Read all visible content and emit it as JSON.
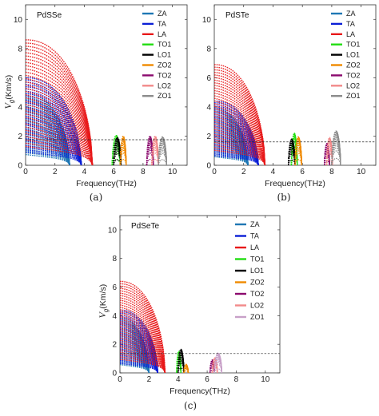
{
  "chart_data": [
    {
      "type": "scatter",
      "panel_title": "PdSSe",
      "caption": "(a)",
      "xlabel": "Frequency(THz)",
      "ylabel_symbol": "V",
      "ylabel_sub": "g",
      "ylabel_units": "(Km/s)",
      "xlim": [
        0,
        11
      ],
      "ylim": [
        0,
        11
      ],
      "xticks": [
        0,
        2,
        4,
        6,
        8,
        10
      ],
      "yticks": [
        0,
        2,
        4,
        6,
        8,
        10
      ],
      "reference_line_y": 1.75,
      "legend_position": "top-right",
      "series": [
        {
          "name": "ZA",
          "color": "#1f77b4",
          "branches": [
            {
              "x0": 0.0,
              "x1": 3.0,
              "peak": 4.9
            }
          ]
        },
        {
          "name": "TA",
          "color": "#0a1fd6",
          "branches": [
            {
              "x0": 0.0,
              "x1": 3.8,
              "peak": 6.0
            }
          ]
        },
        {
          "name": "LA",
          "color": "#e8191a",
          "branches": [
            {
              "x0": 0.0,
              "x1": 4.55,
              "peak": 8.6
            }
          ]
        },
        {
          "name": "TO1",
          "color": "#22dd11",
          "branches": [
            {
              "x0": 5.9,
              "x1": 6.45,
              "peak": 2.05
            }
          ]
        },
        {
          "name": "LO1",
          "color": "#000000",
          "branches": [
            {
              "x0": 6.0,
              "x1": 6.5,
              "peak": 1.9
            }
          ]
        },
        {
          "name": "ZO2",
          "color": "#f08a00",
          "branches": [
            {
              "x0": 6.45,
              "x1": 6.85,
              "peak": 2.0
            }
          ]
        },
        {
          "name": "TO2",
          "color": "#8b0a6e",
          "branches": [
            {
              "x0": 8.25,
              "x1": 8.7,
              "peak": 2.0
            }
          ]
        },
        {
          "name": "LO2",
          "color": "#f28a8a",
          "branches": [
            {
              "x0": 8.6,
              "x1": 9.05,
              "peak": 2.0
            }
          ]
        },
        {
          "name": "ZO1",
          "color": "#8c8c8c",
          "branches": [
            {
              "x0": 9.05,
              "x1": 9.6,
              "peak": 1.95
            }
          ]
        }
      ]
    },
    {
      "type": "scatter",
      "panel_title": "PdSTe",
      "caption": "(b)",
      "xlabel": "Frequency(THz)",
      "ylabel_symbol": "",
      "ylabel_sub": "",
      "ylabel_units": "",
      "xlim": [
        0,
        11
      ],
      "ylim": [
        0,
        11
      ],
      "xticks": [
        0,
        2,
        4,
        6,
        8,
        10
      ],
      "yticks": [
        0,
        2,
        4,
        6,
        8,
        10
      ],
      "reference_line_y": 1.6,
      "legend_position": "top-right",
      "series": [
        {
          "name": "ZA",
          "color": "#1f77b4",
          "branches": [
            {
              "x0": 0.0,
              "x1": 2.3,
              "peak": 3.9
            }
          ]
        },
        {
          "name": "TA",
          "color": "#0a1fd6",
          "branches": [
            {
              "x0": 0.0,
              "x1": 3.0,
              "peak": 4.4
            }
          ]
        },
        {
          "name": "LA",
          "color": "#e8191a",
          "branches": [
            {
              "x0": 0.0,
              "x1": 3.45,
              "peak": 6.9
            }
          ]
        },
        {
          "name": "TO1",
          "color": "#22dd11",
          "branches": [
            {
              "x0": 5.25,
              "x1": 5.65,
              "peak": 2.2
            }
          ]
        },
        {
          "name": "LO1",
          "color": "#000000",
          "branches": [
            {
              "x0": 5.05,
              "x1": 5.5,
              "peak": 1.8
            }
          ]
        },
        {
          "name": "ZO2",
          "color": "#f08a00",
          "branches": [
            {
              "x0": 5.5,
              "x1": 5.95,
              "peak": 1.95
            }
          ]
        },
        {
          "name": "TO2",
          "color": "#8b0a6e",
          "branches": [
            {
              "x0": 7.5,
              "x1": 7.85,
              "peak": 1.5
            }
          ]
        },
        {
          "name": "LO2",
          "color": "#f28a8a",
          "branches": [
            {
              "x0": 7.65,
              "x1": 8.05,
              "peak": 1.9
            }
          ]
        },
        {
          "name": "ZO1",
          "color": "#8c8c8c",
          "branches": [
            {
              "x0": 8.0,
              "x1": 8.6,
              "peak": 2.35
            }
          ]
        }
      ]
    },
    {
      "type": "scatter",
      "panel_title": "PdSeTe",
      "caption": "(c)",
      "xlabel": "Frequency(THz)",
      "ylabel_symbol": "V",
      "ylabel_sub": "g",
      "ylabel_units": "(Km/s)",
      "xlim": [
        0,
        11
      ],
      "ylim": [
        0,
        11
      ],
      "xticks": [
        0,
        2,
        4,
        6,
        8,
        10
      ],
      "yticks": [
        0,
        2,
        4,
        6,
        8,
        10
      ],
      "reference_line_y": 1.35,
      "legend_position": "top-right",
      "series": [
        {
          "name": "ZA",
          "color": "#1f77b4",
          "branches": [
            {
              "x0": 0.0,
              "x1": 2.0,
              "peak": 3.85
            }
          ]
        },
        {
          "name": "TA",
          "color": "#0a1fd6",
          "branches": [
            {
              "x0": 0.0,
              "x1": 2.6,
              "peak": 4.4
            }
          ]
        },
        {
          "name": "LA",
          "color": "#e8191a",
          "branches": [
            {
              "x0": 0.0,
              "x1": 3.1,
              "peak": 6.4
            }
          ]
        },
        {
          "name": "TO1",
          "color": "#22dd11",
          "branches": [
            {
              "x0": 3.9,
              "x1": 4.2,
              "peak": 1.5
            }
          ]
        },
        {
          "name": "LO1",
          "color": "#000000",
          "branches": [
            {
              "x0": 4.0,
              "x1": 4.4,
              "peak": 1.65
            }
          ]
        },
        {
          "name": "ZO2",
          "color": "#f08a00",
          "branches": [
            {
              "x0": 4.4,
              "x1": 4.7,
              "peak": 0.6
            }
          ]
        },
        {
          "name": "TO2",
          "color": "#8b0a6e",
          "branches": [
            {
              "x0": 6.2,
              "x1": 6.5,
              "peak": 0.9
            }
          ]
        },
        {
          "name": "LO2",
          "color": "#f28a8a",
          "branches": [
            {
              "x0": 6.35,
              "x1": 6.7,
              "peak": 1.05
            }
          ]
        },
        {
          "name": "ZO1",
          "color": "#c8a0c8",
          "branches": [
            {
              "x0": 6.5,
              "x1": 7.0,
              "peak": 1.4
            }
          ]
        }
      ]
    }
  ]
}
